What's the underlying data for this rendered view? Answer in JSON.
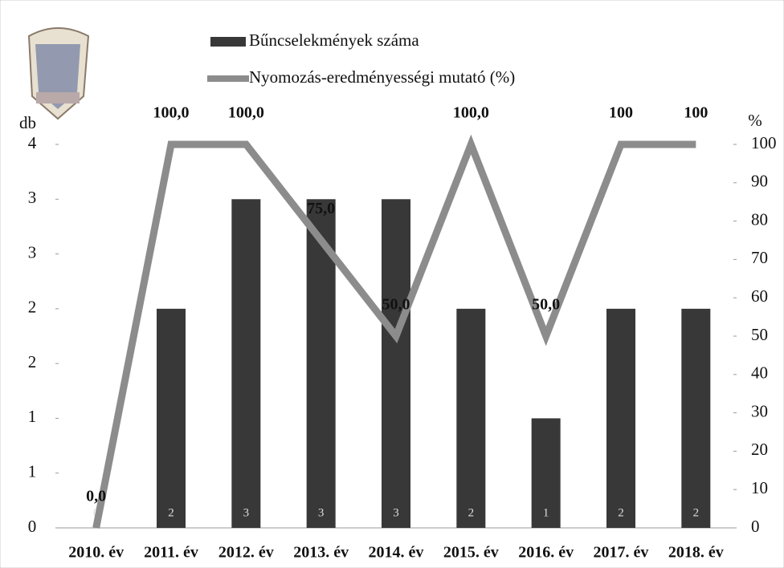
{
  "chart_data": {
    "type": "bar_line",
    "y_label": "db",
    "y2_label": "%",
    "categories": [
      "2010. év",
      "2011. év",
      "2012. év",
      "2013. év",
      "2014. év",
      "2015. év",
      "2016. év",
      "2017. év",
      "2018. év"
    ],
    "series": [
      {
        "name": "Bűncselekmények száma",
        "type": "bar",
        "color": "#383838",
        "values": [
          0,
          2,
          3,
          3,
          3,
          2,
          1,
          2,
          2
        ]
      },
      {
        "name": "Nyomozás-eredményességi mutató (%)",
        "type": "line",
        "axis": "y2",
        "color": "#8c8c8c",
        "values": [
          0,
          100,
          100,
          75,
          50,
          100,
          50,
          100,
          100
        ],
        "value_labels": [
          "0,0",
          "100,0",
          "100,0",
          "75,0",
          "50,0",
          "100,0",
          "50,0",
          "100",
          "100"
        ]
      }
    ],
    "ylim": [
      0,
      3.5
    ],
    "yticks": [
      0,
      {
        "value": 0.5,
        "label": "1"
      },
      1,
      {
        "value": 1.5,
        "label": "2"
      },
      2,
      {
        "value": 2.5,
        "label": "3"
      },
      3,
      {
        "value": 3.5,
        "label": "4"
      }
    ],
    "y2lim": [
      0,
      100
    ],
    "y2ticks": [
      0,
      10,
      20,
      30,
      40,
      50,
      60,
      70,
      80,
      90,
      100
    ]
  }
}
